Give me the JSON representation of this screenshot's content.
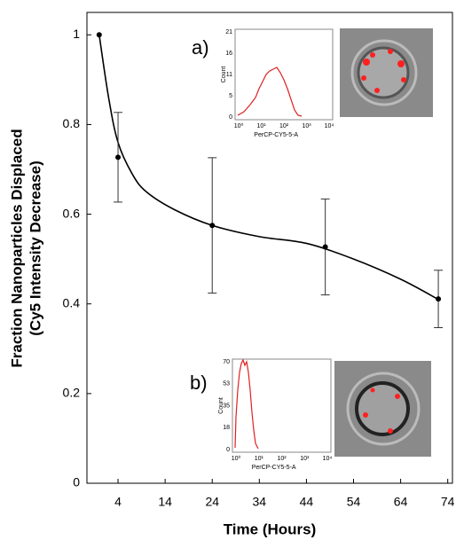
{
  "chart_data": {
    "type": "line",
    "x_label": "Time (Hours)",
    "y_label": [
      "Fraction Nanoparticles Displaced",
      "(Cy5 Intensity Decrease)"
    ],
    "x": [
      0,
      4,
      24,
      48,
      72
    ],
    "values": [
      1,
      0.727,
      0.575,
      0.527,
      0.411
    ],
    "errors": [
      0,
      0.1,
      0.151,
      0.107,
      0.064
    ],
    "color": "#000000",
    "fit": {
      "x": [
        0,
        2,
        4,
        7,
        10,
        16,
        24,
        34,
        44,
        54,
        64,
        72
      ],
      "values": [
        1,
        0.86,
        0.76,
        0.69,
        0.65,
        0.61,
        0.575,
        0.55,
        0.535,
        0.5,
        0.455,
        0.41
      ]
    },
    "xlim": [
      -2.6,
      75
    ],
    "xticks": [
      4,
      14,
      24,
      34,
      44,
      54,
      64,
      74
    ],
    "ylim": [
      0,
      1.05
    ],
    "yticks": [
      0,
      0.2,
      0.4,
      0.6,
      0.8,
      1
    ]
  },
  "insets": [
    {
      "label": "a)",
      "y_axis_label": "Count",
      "x_axis_label": "PerCP-CY5-5-A",
      "yticks": [
        21,
        16,
        11,
        5,
        0
      ],
      "xticks": [
        "10⁰",
        "10¹",
        "10²",
        "10³",
        "10⁴"
      ]
    },
    {
      "label": "b)",
      "y_axis_label": "Count",
      "x_axis_label": "PerCP-CY5-5-A",
      "yticks": [
        70,
        53,
        35,
        18,
        0
      ],
      "xticks": [
        "10⁰",
        "10¹",
        "10²",
        "10³",
        "10⁴"
      ]
    }
  ]
}
